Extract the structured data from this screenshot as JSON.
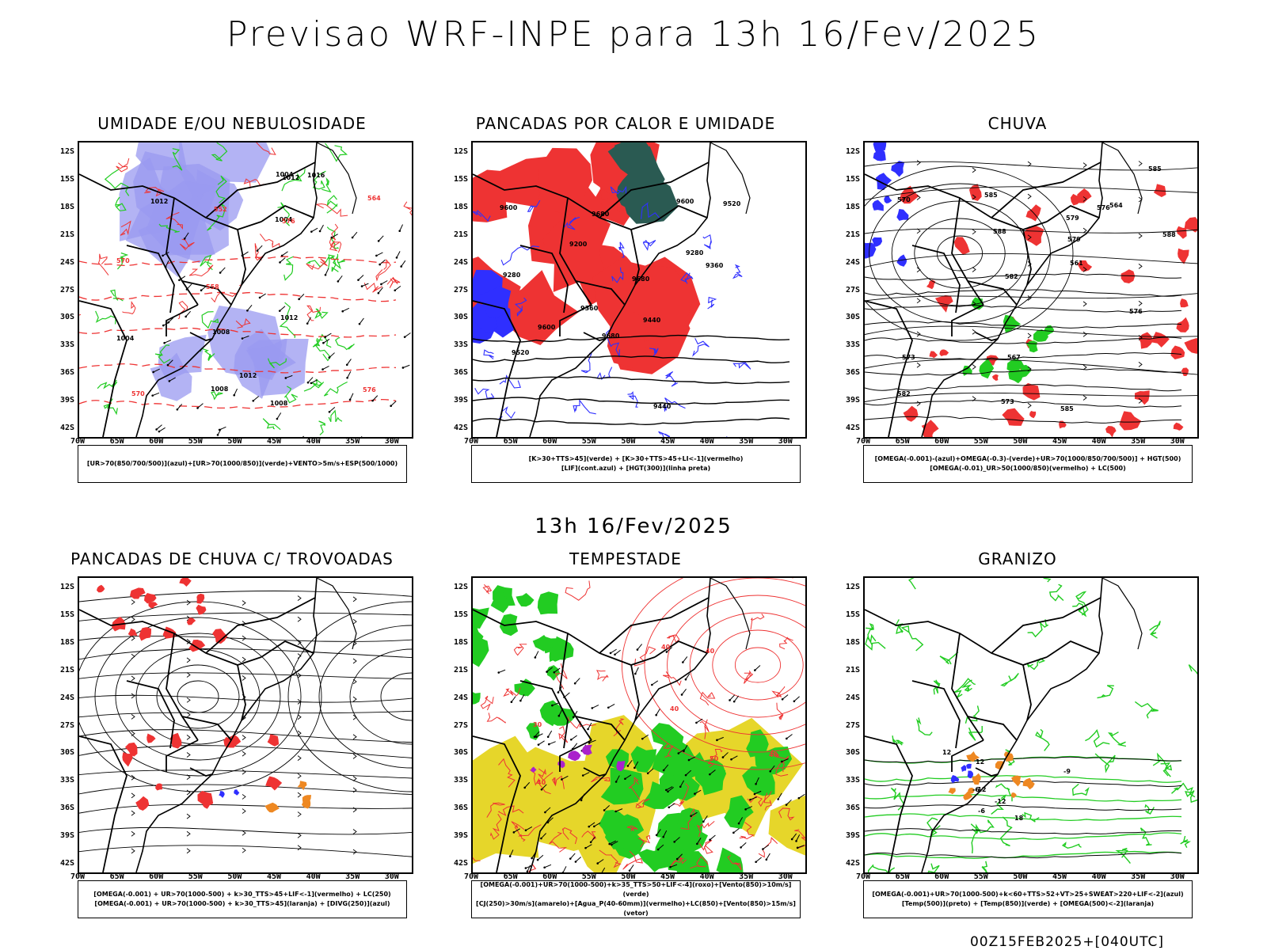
{
  "title": "Previsao WRF-INPE  para 13h 16/Fev/2025",
  "mid_title": "13h 16/Fev/2025",
  "footer": "00Z15FEB2025+[040UTC]",
  "lat_labels": [
    "12S",
    "15S",
    "18S",
    "21S",
    "24S",
    "27S",
    "30S",
    "33S",
    "36S",
    "39S",
    "42S"
  ],
  "lon_labels": [
    "70W",
    "65W",
    "60W",
    "55W",
    "50W",
    "45W",
    "40W",
    "35W",
    "30W"
  ],
  "colors": {
    "blue": "#2f2fff",
    "green": "#22cc22",
    "red": "#ee3333",
    "orange": "#ee8822",
    "yellow": "#e6d62a",
    "purple": "#aa22cc",
    "lavender": "#9a9af0",
    "teal": "#2a5a52"
  },
  "panels": [
    {
      "title": "UMIDADE E/OU NEBULOSIDADE",
      "legend1": "[UR>70(850/700/500)](azul)+[UR>70(1000/850)](verde)+VENTO>5m/s+ESP(500/1000)",
      "legend2": "",
      "contour_labels": [
        "1012",
        "1012",
        "1016",
        "1012",
        "1004",
        "1008",
        "1004",
        "1008",
        "1012",
        "1004",
        "1008",
        "576",
        "570",
        "564",
        "558",
        "576",
        "570",
        "552"
      ]
    },
    {
      "title": "PANCADAS POR CALOR E UMIDADE",
      "legend1": "[K>30+TTS>45](verde) + [K>30+TTS>45+LI<-1](vermelho)",
      "legend2": "[LIF](cont.azul) + [HGT(300)](linha preta)",
      "contour_labels": [
        "9600",
        "9680",
        "9680",
        "9680",
        "9600",
        "9600",
        "9520",
        "9520",
        "9440",
        "9440",
        "9360",
        "9360",
        "9280",
        "9280",
        "9200"
      ]
    },
    {
      "title": "CHUVA",
      "legend1": "[OMEGA(-0.001)-(azul)+OMEGA(-0.3)-(verde)+UR>70(1000/850/700/500)] + HGT(500)",
      "legend2": "[OMEGA(-0.01)_UR>50(1000/850)(vermelho) + LC(500)",
      "contour_labels": [
        "585",
        "588",
        "588",
        "585",
        "582",
        "579",
        "576",
        "573",
        "570",
        "567",
        "564",
        "561",
        "585",
        "582",
        "579",
        "576",
        "573"
      ]
    },
    {
      "title": "PANCADAS DE CHUVA C/ TROVOADAS",
      "legend1": "[OMEGA(-0.001) + UR>70(1000-500) + k>30_TTS>45+LIF<-1](vermelho) + LC(250)",
      "legend2": "[OMEGA(-0.001) + UR>70(1000-500) + k>30_TTS>45](laranja) + [DIVG(250)](azul)",
      "contour_labels": []
    },
    {
      "title": "TEMPESTADE",
      "legend1": "[OMEGA(-0.001)+UR>70(1000-500)+k>35_TTS>50+LIF<-4](roxo)+[Vento(850)>10m/s](verde)",
      "legend2": "[CJ(250)>30m/s](amarelo)+[Agua_P(40-60mm)](vermelho)+LC(850)+[Vento(850)>15m/s](vetor)",
      "contour_labels": [
        "40",
        "40",
        "50",
        "40",
        "40",
        "30",
        "40"
      ]
    },
    {
      "title": "GRANIZO",
      "legend1": "[OMEGA(-0.001)+UR>70(1000-500)+k<60+TTS>52+VT>25+SWEAT>220+LIF<-2](azul)",
      "legend2": "[Temp(500)](preto) + [Temp(850)](verde) + [OMEGA(500)<-2](laranja)",
      "contour_labels": [
        "-9",
        "-12",
        "12",
        "12",
        "-12",
        "18",
        "-6",
        "-6"
      ]
    }
  ]
}
